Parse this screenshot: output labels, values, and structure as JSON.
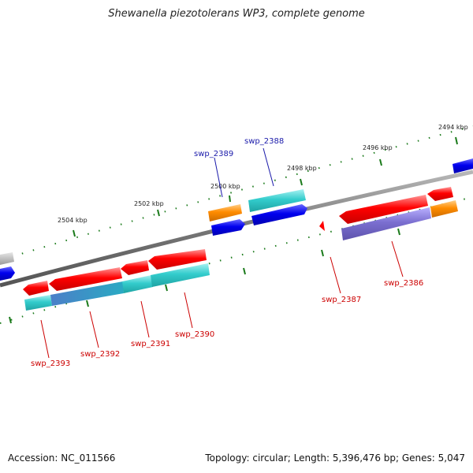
{
  "title": "Shewanella piezotolerans WP3, complete genome",
  "accession": "Accession: NC_011566",
  "topology": "Topology: circular; Length: 5,396,476 bp; Genes: 5,047",
  "ruler_labels": [
    "2494 kbp",
    "2496 kbp",
    "2498 kbp",
    "2500 kbp",
    "2502 kbp",
    "2504 kbp"
  ],
  "gene_labels": {
    "swp_2388": "swp_2388",
    "swp_2389": "swp_2389",
    "swp_2386": "swp_2386",
    "swp_2387": "swp_2387",
    "swp_2390": "swp_2390",
    "swp_2391": "swp_2391",
    "swp_2392": "swp_2392",
    "swp_2393": "swp_2393"
  },
  "colors": {
    "backbone": "#7a7a7a",
    "red": "#ff0000",
    "cyan": "#33cccc",
    "blue": "#0000ee",
    "orange": "#ff8c00",
    "purple": "#7b6fd0",
    "grey": "#bbbbbb",
    "tick": "#1a7a1a",
    "label_blue": "#1a1aaa",
    "label_red": "#cc0000"
  }
}
